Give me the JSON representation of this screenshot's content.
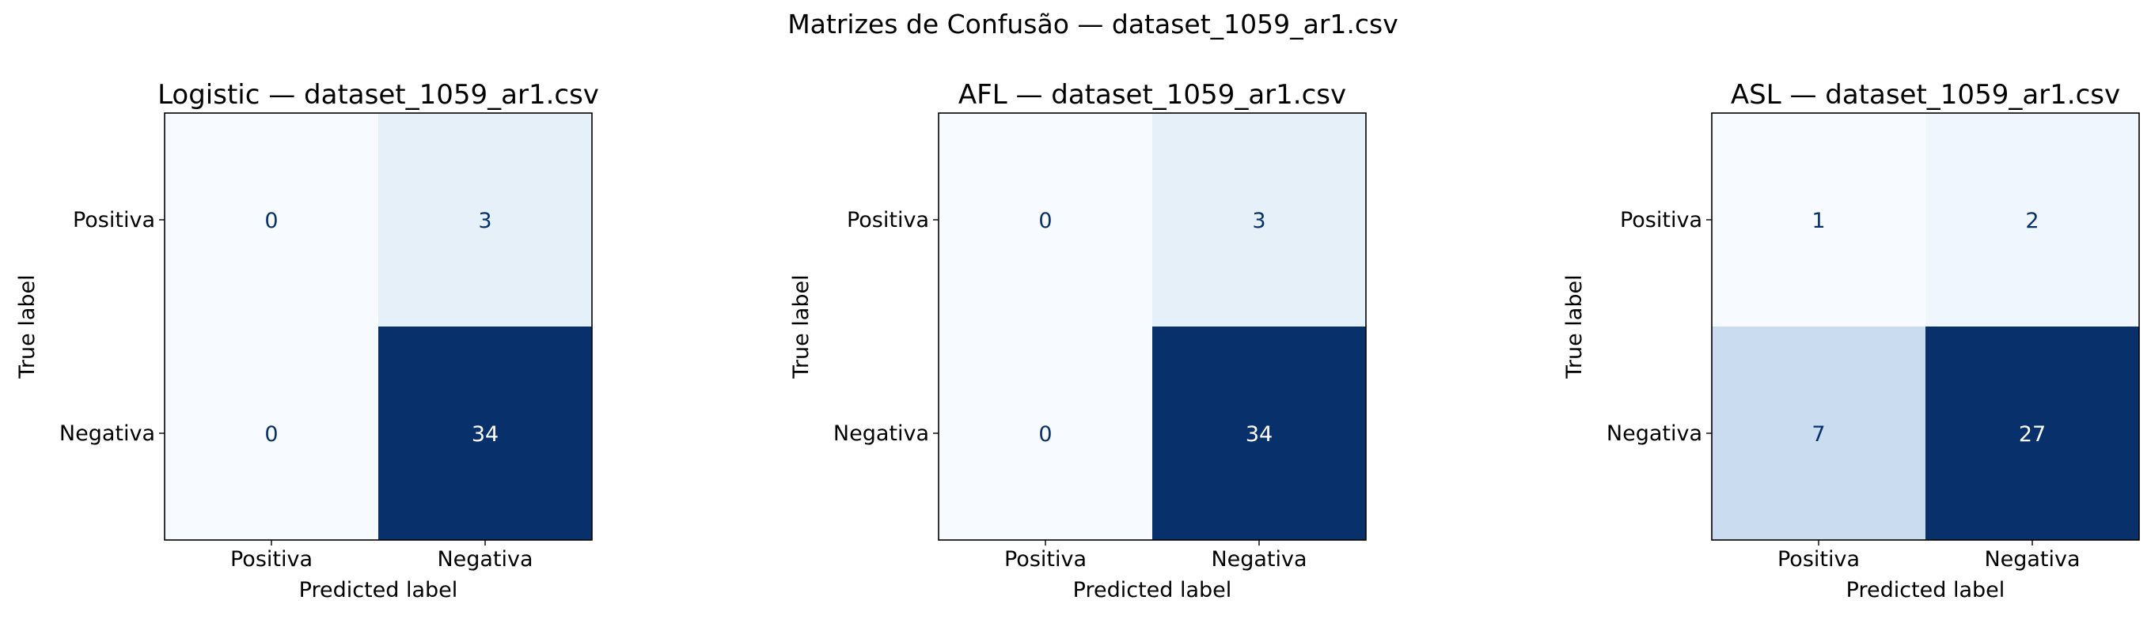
{
  "figure": {
    "suptitle": "Matrizes de Confusão — dataset_1059_ar1.csv"
  },
  "colors": {
    "cmap_low": "#f7fbff",
    "cmap_high": "#08306b",
    "text_dark": "#08306b",
    "text_light": "#ffffff"
  },
  "chart_data": [
    {
      "type": "heatmap",
      "title": "Logistic — dataset_1059_ar1.csv",
      "xlabel": "Predicted label",
      "ylabel": "True label",
      "x_categories": [
        "Positiva",
        "Negativa"
      ],
      "y_categories": [
        "Positiva",
        "Negativa"
      ],
      "values": [
        [
          0,
          3
        ],
        [
          0,
          34
        ]
      ],
      "colorbar": false,
      "grid": false
    },
    {
      "type": "heatmap",
      "title": "AFL — dataset_1059_ar1.csv",
      "xlabel": "Predicted label",
      "ylabel": "True label",
      "x_categories": [
        "Positiva",
        "Negativa"
      ],
      "y_categories": [
        "Positiva",
        "Negativa"
      ],
      "values": [
        [
          0,
          3
        ],
        [
          0,
          34
        ]
      ],
      "colorbar": false,
      "grid": false
    },
    {
      "type": "heatmap",
      "title": "ASL — dataset_1059_ar1.csv",
      "xlabel": "Predicted label",
      "ylabel": "True label",
      "x_categories": [
        "Positiva",
        "Negativa"
      ],
      "y_categories": [
        "Positiva",
        "Negativa"
      ],
      "values": [
        [
          1,
          2
        ],
        [
          7,
          27
        ]
      ],
      "colorbar": false,
      "grid": false
    }
  ]
}
